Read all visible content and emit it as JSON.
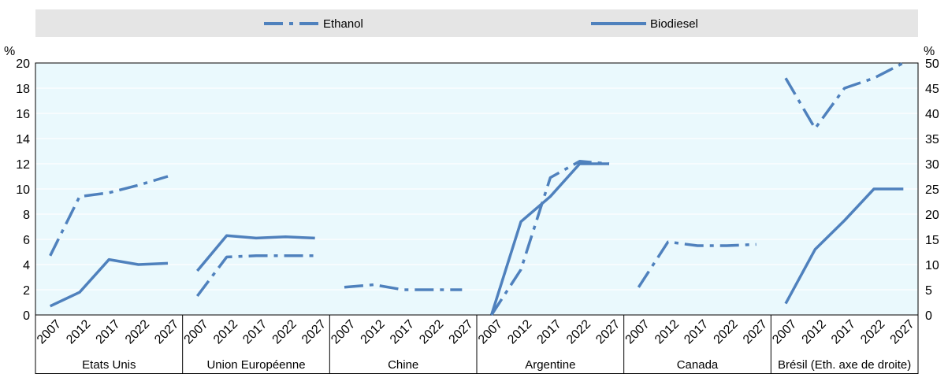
{
  "chart_data": {
    "type": "line",
    "legend": {
      "position": "top",
      "items": [
        {
          "label": "Ethanol",
          "style": "dash-dot"
        },
        {
          "label": "Biodiesel",
          "style": "solid"
        }
      ]
    },
    "y_left": {
      "unit": "%",
      "min": 0,
      "max": 20,
      "step": 2,
      "ticks": [
        "0",
        "2",
        "4",
        "6",
        "8",
        "10",
        "12",
        "14",
        "16",
        "18",
        "20"
      ]
    },
    "y_right": {
      "unit": "%",
      "min": 0,
      "max": 50,
      "step": 5,
      "ticks": [
        "0",
        "5",
        "10",
        "15",
        "20",
        "25",
        "30",
        "35",
        "40",
        "45",
        "50"
      ]
    },
    "years": [
      "2007",
      "2012",
      "2017",
      "2022",
      "2027"
    ],
    "colors": {
      "line": "#4f81bd",
      "plot_bg": "#eaf9fd",
      "legend_bg": "#e5e5e5"
    },
    "grid": "horizontal",
    "groups": [
      {
        "name": "Etats Unis",
        "axis": "left",
        "ethanol": [
          4.7,
          9.4,
          9.7,
          10.3,
          11.0
        ],
        "biodiesel": [
          0.7,
          1.8,
          4.4,
          4.0,
          4.1
        ]
      },
      {
        "name": "Union Européenne",
        "axis": "left",
        "ethanol": [
          1.5,
          4.6,
          4.7,
          4.7,
          4.7
        ],
        "biodiesel": [
          3.5,
          6.3,
          6.1,
          6.2,
          6.1
        ]
      },
      {
        "name": "Chine",
        "axis": "left",
        "ethanol": [
          2.2,
          2.4,
          2.0,
          2.0,
          2.0
        ],
        "biodiesel": [
          null,
          null,
          null,
          null,
          null
        ]
      },
      {
        "name": "Argentine",
        "axis": "left",
        "ethanol": [
          0.0,
          3.6,
          10.9,
          12.2,
          12.0
        ],
        "biodiesel": [
          0.0,
          7.4,
          9.4,
          12.0,
          12.0
        ]
      },
      {
        "name": "Canada",
        "axis": "left",
        "ethanol": [
          2.2,
          5.8,
          5.5,
          5.5,
          5.6
        ],
        "biodiesel": [
          null,
          null,
          null,
          null,
          null
        ]
      },
      {
        "name": "Brésil (Eth. axe de droite)",
        "axis": "right",
        "ethanol": [
          47,
          37,
          45,
          47,
          50
        ],
        "biodiesel": [
          0.9,
          5.2,
          7.5,
          10.0,
          10.0
        ]
      }
    ]
  }
}
